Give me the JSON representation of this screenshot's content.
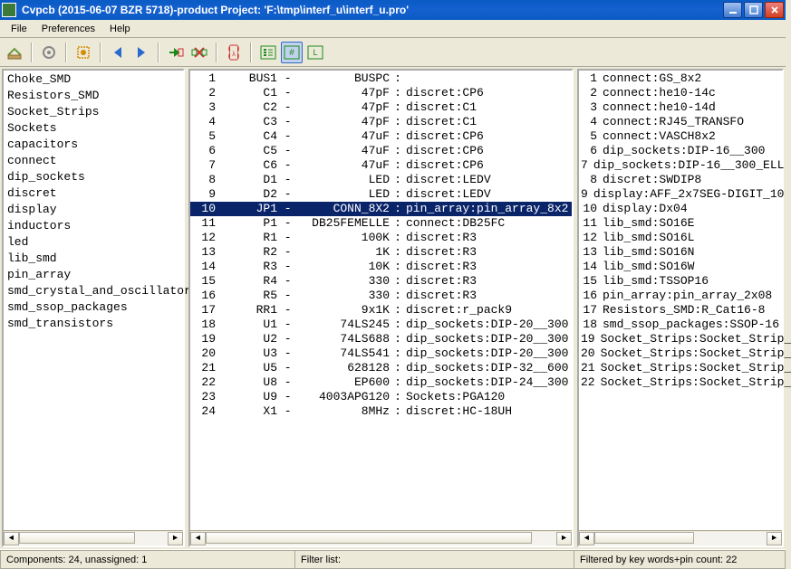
{
  "window": {
    "title": "Cvpcb (2015-06-07 BZR 5718)-product  Project: 'F:\\tmp\\interf_u\\interf_u.pro'"
  },
  "menu": [
    "File",
    "Preferences",
    "Help"
  ],
  "libs": [
    "Choke_SMD",
    "Resistors_SMD",
    "Socket_Strips",
    "Sockets",
    "capacitors",
    "connect",
    "dip_sockets",
    "discret",
    "display",
    "inductors",
    "led",
    "lib_smd",
    "pin_array",
    "smd_crystal_and_oscillator",
    "smd_ssop_packages",
    "smd_transistors"
  ],
  "components": [
    {
      "n": 1,
      "ref": "BUS1",
      "val": "BUSPC",
      "fp": ""
    },
    {
      "n": 2,
      "ref": "C1",
      "val": "47pF",
      "fp": "discret:CP6"
    },
    {
      "n": 3,
      "ref": "C2",
      "val": "47pF",
      "fp": "discret:C1"
    },
    {
      "n": 4,
      "ref": "C3",
      "val": "47pF",
      "fp": "discret:C1"
    },
    {
      "n": 5,
      "ref": "C4",
      "val": "47uF",
      "fp": "discret:CP6"
    },
    {
      "n": 6,
      "ref": "C5",
      "val": "47uF",
      "fp": "discret:CP6"
    },
    {
      "n": 7,
      "ref": "C6",
      "val": "47uF",
      "fp": "discret:CP6"
    },
    {
      "n": 8,
      "ref": "D1",
      "val": "LED",
      "fp": "discret:LEDV"
    },
    {
      "n": 9,
      "ref": "D2",
      "val": "LED",
      "fp": "discret:LEDV"
    },
    {
      "n": 10,
      "ref": "JP1",
      "val": "CONN_8X2",
      "fp": "pin_array:pin_array_8x2",
      "sel": true
    },
    {
      "n": 11,
      "ref": "P1",
      "val": "DB25FEMELLE",
      "fp": "connect:DB25FC"
    },
    {
      "n": 12,
      "ref": "R1",
      "val": "100K",
      "fp": "discret:R3"
    },
    {
      "n": 13,
      "ref": "R2",
      "val": "1K",
      "fp": "discret:R3"
    },
    {
      "n": 14,
      "ref": "R3",
      "val": "10K",
      "fp": "discret:R3"
    },
    {
      "n": 15,
      "ref": "R4",
      "val": "330",
      "fp": "discret:R3"
    },
    {
      "n": 16,
      "ref": "R5",
      "val": "330",
      "fp": "discret:R3"
    },
    {
      "n": 17,
      "ref": "RR1",
      "val": "9x1K",
      "fp": "discret:r_pack9"
    },
    {
      "n": 18,
      "ref": "U1",
      "val": "74LS245",
      "fp": "dip_sockets:DIP-20__300"
    },
    {
      "n": 19,
      "ref": "U2",
      "val": "74LS688",
      "fp": "dip_sockets:DIP-20__300"
    },
    {
      "n": 20,
      "ref": "U3",
      "val": "74LS541",
      "fp": "dip_sockets:DIP-20__300"
    },
    {
      "n": 21,
      "ref": "U5",
      "val": "628128",
      "fp": "dip_sockets:DIP-32__600"
    },
    {
      "n": 22,
      "ref": "U8",
      "val": "EP600",
      "fp": "dip_sockets:DIP-24__300"
    },
    {
      "n": 23,
      "ref": "U9",
      "val": "4003APG120",
      "fp": "Sockets:PGA120"
    },
    {
      "n": 24,
      "ref": "X1",
      "val": "8MHz",
      "fp": "discret:HC-18UH"
    }
  ],
  "footprints": [
    {
      "n": 1,
      "t": "connect:GS_8x2"
    },
    {
      "n": 2,
      "t": "connect:he10-14c"
    },
    {
      "n": 3,
      "t": "connect:he10-14d"
    },
    {
      "n": 4,
      "t": "connect:RJ45_TRANSFO"
    },
    {
      "n": 5,
      "t": "connect:VASCH8x2"
    },
    {
      "n": 6,
      "t": "dip_sockets:DIP-16__300"
    },
    {
      "n": 7,
      "t": "dip_sockets:DIP-16__300_ELL"
    },
    {
      "n": 8,
      "t": "discret:SWDIP8"
    },
    {
      "n": 9,
      "t": "display:AFF_2x7SEG-DIGIT_10"
    },
    {
      "n": 10,
      "t": "display:Dx04"
    },
    {
      "n": 11,
      "t": "lib_smd:SO16E"
    },
    {
      "n": 12,
      "t": "lib_smd:SO16L"
    },
    {
      "n": 13,
      "t": "lib_smd:SO16N"
    },
    {
      "n": 14,
      "t": "lib_smd:SO16W"
    },
    {
      "n": 15,
      "t": "lib_smd:TSSOP16"
    },
    {
      "n": 16,
      "t": "pin_array:pin_array_2x08"
    },
    {
      "n": 17,
      "t": "Resistors_SMD:R_Cat16-8"
    },
    {
      "n": 18,
      "t": "smd_ssop_packages:SSOP-16"
    },
    {
      "n": 19,
      "t": "Socket_Strips:Socket_Strip_"
    },
    {
      "n": 20,
      "t": "Socket_Strips:Socket_Strip_"
    },
    {
      "n": 21,
      "t": "Socket_Strips:Socket_Strip_"
    },
    {
      "n": 22,
      "t": "Socket_Strips:Socket_Strip_"
    }
  ],
  "status": {
    "left": "Components: 24, unassigned: 1",
    "mid": "Filter list:",
    "right": "Filtered by key words+pin count: 22"
  }
}
